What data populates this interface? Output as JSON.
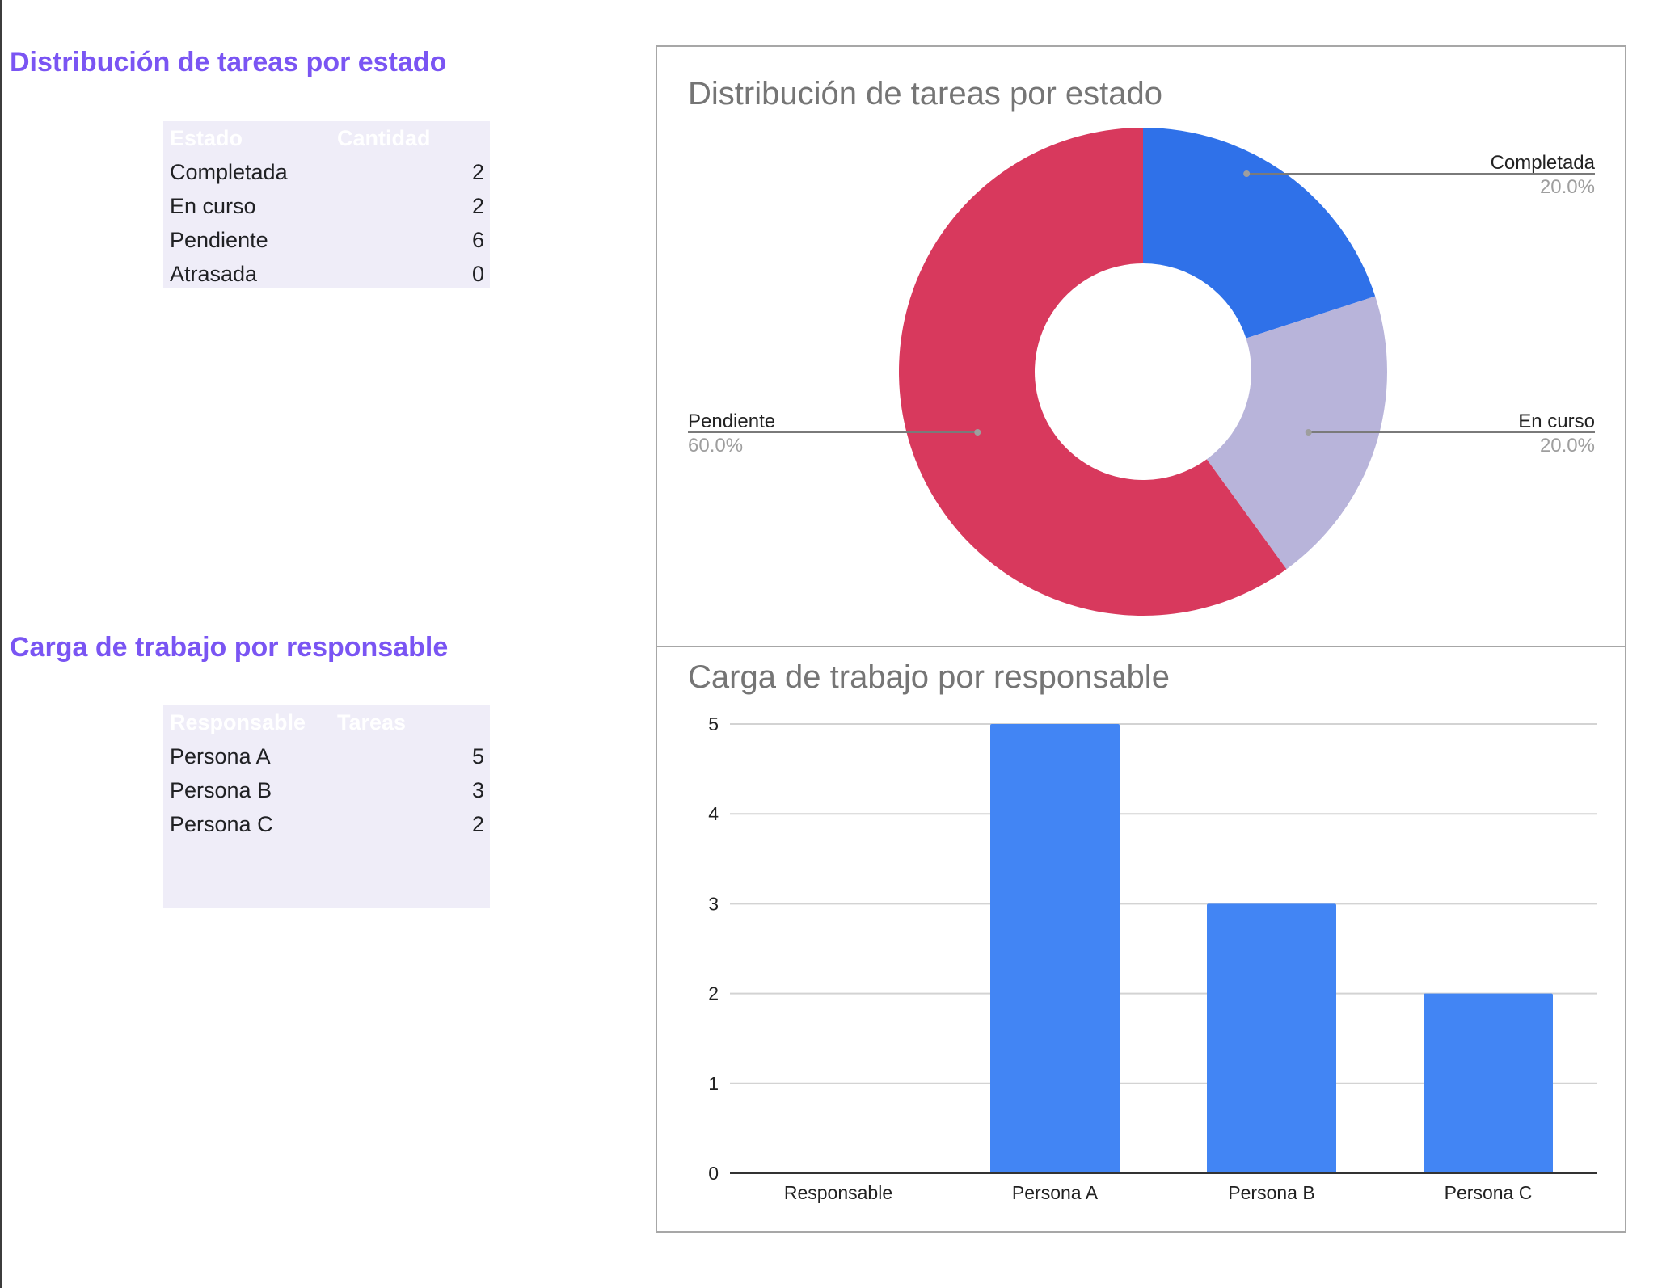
{
  "sections": {
    "status": {
      "title": "Distribución de tareas por estado",
      "table": {
        "headers": [
          "Estado",
          "Cantidad"
        ],
        "rows": [
          {
            "label": "Completada",
            "value": "2"
          },
          {
            "label": "En curso",
            "value": "2"
          },
          {
            "label": "Pendiente",
            "value": "6"
          },
          {
            "label": "Atrasada",
            "value": "0"
          }
        ]
      }
    },
    "workload": {
      "title": "Carga de trabajo por responsable",
      "table": {
        "headers": [
          "Responsable",
          "Tareas"
        ],
        "rows": [
          {
            "label": "Persona A",
            "value": "5"
          },
          {
            "label": "Persona B",
            "value": "3"
          },
          {
            "label": "Persona C",
            "value": "2"
          }
        ]
      }
    }
  },
  "colors": {
    "section_title": "#7a55f3",
    "table_bg": "#efedf8",
    "completada": "#2f71e9",
    "en_curso": "#b8b4da",
    "pendiente": "#d8395d",
    "bar": "#4285f4"
  },
  "chart_data": [
    {
      "type": "pie",
      "variant": "donut",
      "title": "Distribución de tareas por estado",
      "slices": [
        {
          "label": "Completada",
          "value": 2,
          "percent_label": "20.0%",
          "color": "#2f71e9"
        },
        {
          "label": "En curso",
          "value": 2,
          "percent_label": "20.0%",
          "color": "#b8b4da"
        },
        {
          "label": "Pendiente",
          "value": 6,
          "percent_label": "60.0%",
          "color": "#d8395d"
        }
      ]
    },
    {
      "type": "bar",
      "title": "Carga de trabajo por responsable",
      "categories": [
        "Responsable",
        "Persona A",
        "Persona B",
        "Persona C"
      ],
      "values": [
        0,
        5,
        3,
        2
      ],
      "ylim": [
        0,
        5
      ],
      "yticks": [
        "0",
        "1",
        "2",
        "3",
        "4",
        "5"
      ],
      "grid": true,
      "color": "#4285f4"
    }
  ]
}
